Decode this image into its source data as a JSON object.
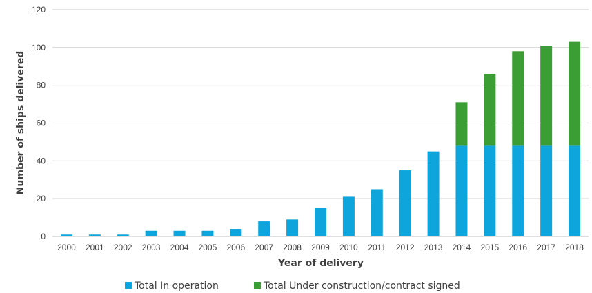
{
  "chart_data": {
    "type": "bar",
    "stacked": true,
    "title": "",
    "xlabel": "Year of delivery",
    "ylabel": "Number of ships delivered",
    "ylim": [
      0,
      120
    ],
    "yticks": [
      0,
      20,
      40,
      60,
      80,
      100,
      120
    ],
    "grid": true,
    "legend_position": "bottom",
    "categories": [
      "2000",
      "2001",
      "2002",
      "2003",
      "2004",
      "2005",
      "2006",
      "2007",
      "2008",
      "2009",
      "2010",
      "2011",
      "2012",
      "2013",
      "2014",
      "2015",
      "2016",
      "2017",
      "2018"
    ],
    "series": [
      {
        "name": "Total In operation",
        "color": "#0ea5dc",
        "values": [
          1,
          1,
          1,
          3,
          3,
          3,
          4,
          8,
          9,
          15,
          21,
          25,
          35,
          45,
          48,
          48,
          48,
          48,
          48
        ]
      },
      {
        "name": "Total Under construction/contract signed",
        "color": "#3b9e35",
        "values": [
          0,
          0,
          0,
          0,
          0,
          0,
          0,
          0,
          0,
          0,
          0,
          0,
          0,
          0,
          23,
          38,
          50,
          53,
          55
        ]
      }
    ]
  }
}
